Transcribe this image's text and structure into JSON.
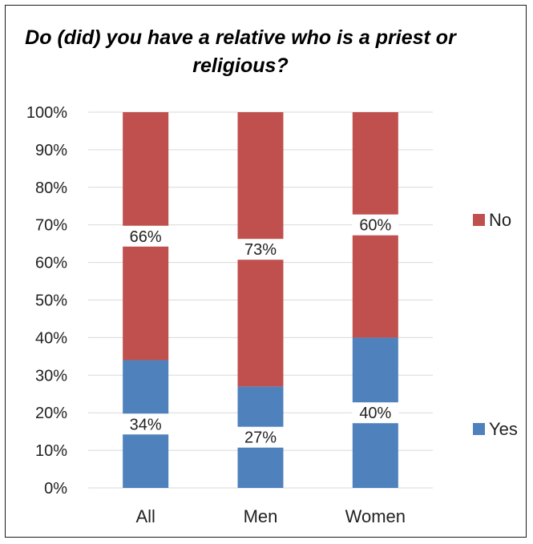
{
  "chart_data": {
    "type": "bar",
    "stacked": true,
    "percent": true,
    "title": "Do (did) you have a relative who is a priest or religious?",
    "categories": [
      "All",
      "Men",
      "Women"
    ],
    "series": [
      {
        "name": "Yes",
        "values": [
          34,
          27,
          40
        ],
        "labels": [
          "34%",
          "27%",
          "40%"
        ],
        "color": "#4f81bd"
      },
      {
        "name": "No",
        "values": [
          66,
          73,
          60
        ],
        "labels": [
          "66%",
          "73%",
          "60%"
        ],
        "color": "#c0504d"
      }
    ],
    "ylim": [
      0,
      100
    ],
    "yticks": [
      "0%",
      "10%",
      "20%",
      "30%",
      "40%",
      "50%",
      "60%",
      "70%",
      "80%",
      "90%",
      "100%"
    ],
    "grid": true,
    "legend_position": "right"
  }
}
